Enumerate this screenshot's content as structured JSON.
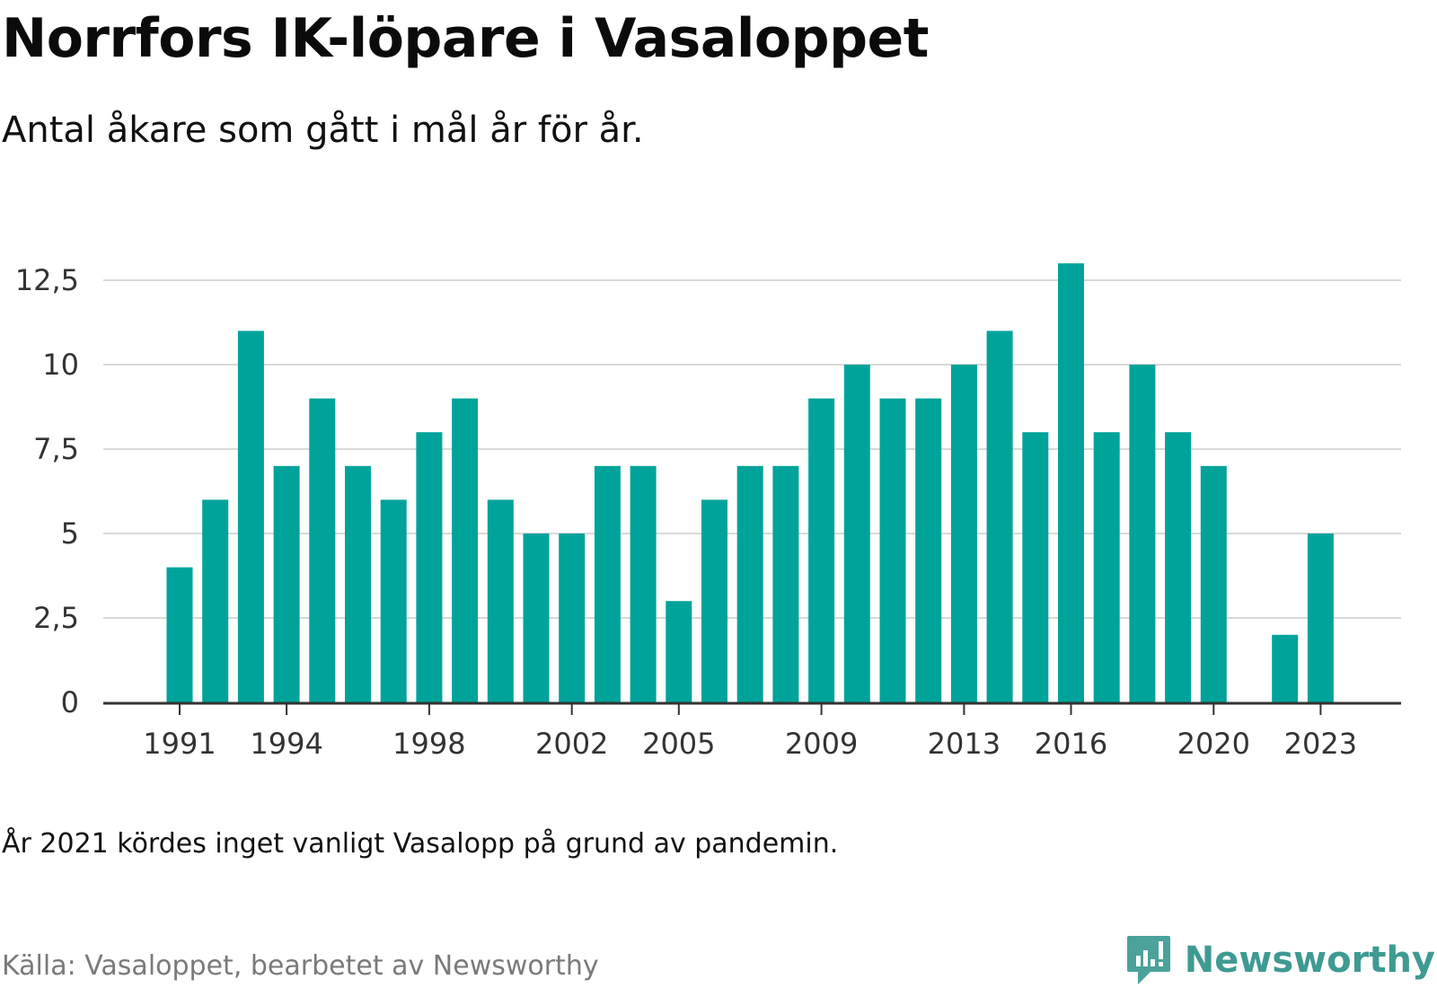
{
  "title": "Norrfors IK-löpare i Vasaloppet",
  "subtitle": "Antal åkare som gått i mål år för år.",
  "note": "År 2021 kördes inget vanligt Vasalopp på grund av pandemin.",
  "source": "Källa: Vasaloppet, bearbetet av Newsworthy",
  "brand": {
    "name": "Newsworthy",
    "icon": "newsworthy-logo-icon",
    "color": "#3f9a92"
  },
  "colors": {
    "bar": "#00a39a",
    "grid": "#d9d9d9",
    "axis": "#333333",
    "tick_text": "#333333"
  },
  "chart_data": {
    "type": "bar",
    "title": "Norrfors IK-löpare i Vasaloppet",
    "subtitle": "Antal åkare som gått i mål år för år.",
    "xlabel": "",
    "ylabel": "",
    "x": [
      1991,
      1992,
      1993,
      1994,
      1995,
      1996,
      1997,
      1998,
      1999,
      2000,
      2001,
      2002,
      2003,
      2004,
      2005,
      2006,
      2007,
      2008,
      2009,
      2010,
      2011,
      2012,
      2013,
      2014,
      2015,
      2016,
      2017,
      2018,
      2019,
      2020,
      2021,
      2022,
      2023
    ],
    "values": [
      4,
      6,
      11,
      7,
      9,
      7,
      6,
      8,
      9,
      6,
      5,
      5,
      7,
      7,
      3,
      6,
      7,
      7,
      9,
      10,
      9,
      9,
      10,
      11,
      8,
      13,
      8,
      10,
      8,
      7,
      0,
      2,
      5
    ],
    "x_tick_labels": [
      "1991",
      "1994",
      "1998",
      "2002",
      "2005",
      "2009",
      "2013",
      "2016",
      "2020",
      "2023"
    ],
    "y_ticks": [
      0,
      2.5,
      5,
      7.5,
      10,
      12.5
    ],
    "y_tick_labels": [
      "0",
      "2,5",
      "5",
      "7,5",
      "10",
      "12,5"
    ],
    "ylim": [
      0,
      13
    ],
    "grid": true,
    "legend": "none"
  }
}
